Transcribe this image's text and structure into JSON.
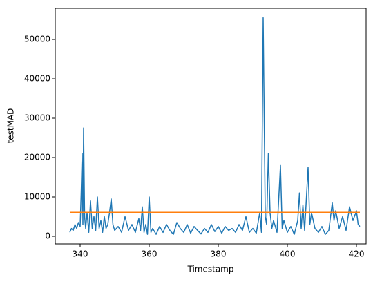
{
  "chart_data": {
    "type": "line",
    "xlabel": "Timestamp",
    "ylabel": "testMAD",
    "xlim": [
      332.8,
      422.8
    ],
    "xticks": [
      340,
      360,
      380,
      400,
      420
    ],
    "ylim": [
      -1930,
      57900
    ],
    "yticks": [
      0,
      10000,
      20000,
      30000,
      40000,
      50000
    ],
    "series": [
      {
        "color": "#1f77b4",
        "x": [
          337,
          337.5,
          338,
          338.5,
          339,
          339.5,
          340,
          340.3,
          340.6,
          340.8,
          341,
          341.3,
          341.6,
          342,
          342.5,
          343,
          343.5,
          344,
          344.5,
          345,
          345.5,
          346,
          346.5,
          347,
          347.5,
          348,
          348.5,
          349,
          349.5,
          350,
          351,
          352,
          353,
          354,
          355,
          356,
          357,
          357.5,
          358,
          358.5,
          359,
          359.5,
          360,
          360.5,
          361,
          362,
          363,
          364,
          365,
          366,
          367,
          368,
          369,
          370,
          371,
          372,
          373,
          374,
          375,
          376,
          377,
          378,
          379,
          380,
          381,
          382,
          383,
          384,
          385,
          386,
          387,
          388,
          389,
          390,
          391,
          392,
          392.5,
          393,
          393.3,
          393.6,
          394,
          394.5,
          395,
          395.5,
          396,
          397,
          398,
          398.5,
          399,
          400,
          401,
          402,
          403,
          403.5,
          404,
          404.5,
          405,
          406,
          406.5,
          407,
          408,
          409,
          410,
          411,
          412,
          413,
          413.5,
          414,
          415,
          416,
          417,
          418,
          419,
          420,
          420.5,
          421
        ],
        "values": [
          1000,
          2000,
          1500,
          3000,
          2000,
          3500,
          2500,
          11000,
          21000,
          3000,
          27500,
          5000,
          2000,
          6000,
          1000,
          9000,
          2000,
          5000,
          1500,
          10000,
          2000,
          4000,
          1000,
          5000,
          2000,
          3000,
          6000,
          9500,
          3000,
          1500,
          2500,
          1000,
          5000,
          1500,
          3000,
          1000,
          4500,
          1500,
          7500,
          1000,
          3000,
          500,
          10000,
          1000,
          2000,
          500,
          2500,
          1000,
          3000,
          1500,
          500,
          3500,
          2000,
          1000,
          3000,
          800,
          2500,
          1500,
          600,
          2000,
          1000,
          3000,
          1200,
          2500,
          800,
          2500,
          1500,
          2000,
          1000,
          3000,
          1500,
          5000,
          1000,
          2000,
          800,
          6000,
          1000,
          55500,
          30000,
          5000,
          3000,
          21000,
          6000,
          2000,
          4000,
          1000,
          18000,
          2000,
          4000,
          1000,
          2500,
          500,
          4000,
          11000,
          2000,
          8000,
          1500,
          17500,
          3000,
          6000,
          2000,
          1000,
          2500,
          500,
          1500,
          8500,
          4000,
          6500,
          2000,
          5000,
          1500,
          7500,
          4000,
          6500,
          3000,
          2500
        ]
      },
      {
        "color": "#ff7f0e",
        "x": [
          337,
          421
        ],
        "values": [
          6100,
          6100
        ]
      }
    ]
  }
}
